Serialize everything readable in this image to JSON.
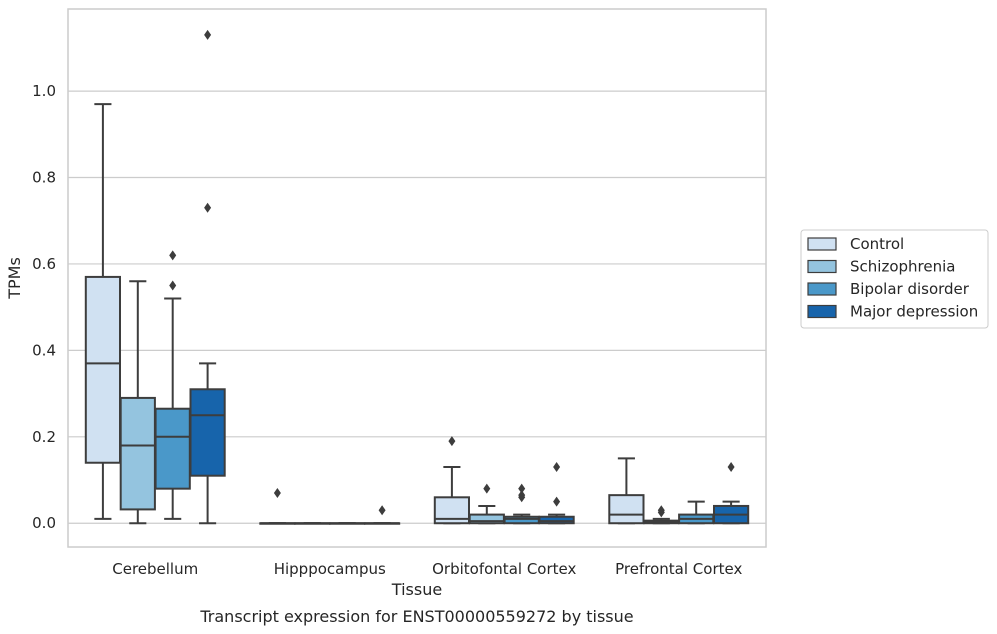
{
  "caption": "Transcript expression for ENST00000559272 by tissue",
  "chart_data": {
    "type": "box",
    "xlabel": "Tissue",
    "ylabel": "TPMs",
    "ylim": [
      -0.055,
      1.19
    ],
    "yticks": [
      "0.0",
      "0.2",
      "0.4",
      "0.6",
      "0.8",
      "1.0"
    ],
    "grid": "horizontal",
    "legend_position": "right",
    "categories": [
      "Cerebellum",
      "Hipppocampus",
      "Orbitofontal Cortex",
      "Prefrontal Cortex"
    ],
    "series": [
      {
        "name": "Control",
        "color": "#d0e1f2",
        "boxes": [
          {
            "whisker_low": 0.01,
            "q1": 0.14,
            "median": 0.37,
            "q3": 0.57,
            "whisker_high": 0.97,
            "outliers": []
          },
          {
            "whisker_low": 0.0,
            "q1": 0.0,
            "median": 0.0,
            "q3": 0.0,
            "whisker_high": 0.0,
            "outliers": [
              0.07
            ]
          },
          {
            "whisker_low": 0.0,
            "q1": 0.0,
            "median": 0.01,
            "q3": 0.06,
            "whisker_high": 0.13,
            "outliers": [
              0.19
            ]
          },
          {
            "whisker_low": 0.0,
            "q1": 0.0,
            "median": 0.02,
            "q3": 0.065,
            "whisker_high": 0.15,
            "outliers": []
          }
        ]
      },
      {
        "name": "Schizophrenia",
        "color": "#94c4df",
        "boxes": [
          {
            "whisker_low": 0.0,
            "q1": 0.032,
            "median": 0.18,
            "q3": 0.29,
            "whisker_high": 0.56,
            "outliers": []
          },
          {
            "whisker_low": 0.0,
            "q1": 0.0,
            "median": 0.0,
            "q3": 0.0,
            "whisker_high": 0.0,
            "outliers": []
          },
          {
            "whisker_low": 0.0,
            "q1": 0.0,
            "median": 0.005,
            "q3": 0.02,
            "whisker_high": 0.04,
            "outliers": [
              0.08
            ]
          },
          {
            "whisker_low": 0.0,
            "q1": 0.0,
            "median": 0.003,
            "q3": 0.006,
            "whisker_high": 0.01,
            "outliers": [
              0.025,
              0.03
            ]
          }
        ]
      },
      {
        "name": "Bipolar disorder",
        "color": "#4a98c9",
        "boxes": [
          {
            "whisker_low": 0.01,
            "q1": 0.08,
            "median": 0.2,
            "q3": 0.265,
            "whisker_high": 0.52,
            "outliers": [
              0.55,
              0.62
            ]
          },
          {
            "whisker_low": 0.0,
            "q1": 0.0,
            "median": 0.0,
            "q3": 0.0,
            "whisker_high": 0.0,
            "outliers": []
          },
          {
            "whisker_low": 0.0,
            "q1": 0.0,
            "median": 0.01,
            "q3": 0.015,
            "whisker_high": 0.02,
            "outliers": [
              0.06,
              0.065,
              0.08
            ]
          },
          {
            "whisker_low": 0.0,
            "q1": 0.0,
            "median": 0.01,
            "q3": 0.02,
            "whisker_high": 0.05,
            "outliers": []
          }
        ]
      },
      {
        "name": "Major depression",
        "color": "#1764ab",
        "boxes": [
          {
            "whisker_low": 0.0,
            "q1": 0.11,
            "median": 0.25,
            "q3": 0.31,
            "whisker_high": 0.37,
            "outliers": [
              0.73,
              1.13
            ]
          },
          {
            "whisker_low": 0.0,
            "q1": 0.0,
            "median": 0.0,
            "q3": 0.0,
            "whisker_high": 0.0,
            "outliers": [
              0.03
            ]
          },
          {
            "whisker_low": 0.0,
            "q1": 0.0,
            "median": 0.005,
            "q3": 0.015,
            "whisker_high": 0.02,
            "outliers": [
              0.05,
              0.13
            ]
          },
          {
            "whisker_low": 0.0,
            "q1": 0.0,
            "median": 0.02,
            "q3": 0.04,
            "whisker_high": 0.05,
            "outliers": [
              0.13
            ]
          }
        ]
      }
    ]
  }
}
